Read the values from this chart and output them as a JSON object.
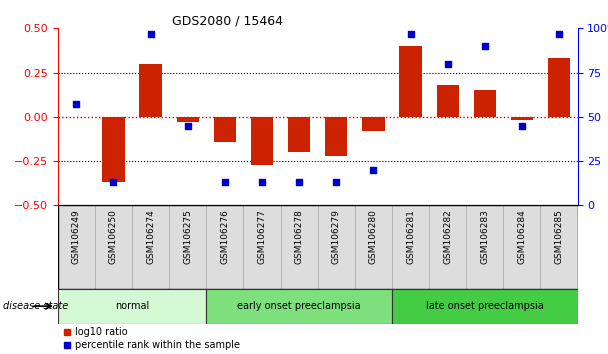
{
  "title": "GDS2080 / 15464",
  "samples": [
    "GSM106249",
    "GSM106250",
    "GSM106274",
    "GSM106275",
    "GSM106276",
    "GSM106277",
    "GSM106278",
    "GSM106279",
    "GSM106280",
    "GSM106281",
    "GSM106282",
    "GSM106283",
    "GSM106284",
    "GSM106285"
  ],
  "log10_ratio": [
    0.0,
    -0.37,
    0.3,
    -0.03,
    -0.14,
    -0.27,
    -0.2,
    -0.22,
    -0.08,
    0.4,
    0.18,
    0.15,
    -0.02,
    0.33
  ],
  "percentile_rank": [
    57,
    13,
    97,
    45,
    13,
    13,
    13,
    13,
    20,
    97,
    80,
    90,
    45,
    97
  ],
  "groups": [
    {
      "label": "normal",
      "start": 0,
      "end": 3,
      "color": "#d4f7d4"
    },
    {
      "label": "early onset preeclampsia",
      "start": 4,
      "end": 8,
      "color": "#7de07d"
    },
    {
      "label": "late onset preeclampsia",
      "start": 9,
      "end": 13,
      "color": "#44cc44"
    }
  ],
  "bar_color": "#cc2200",
  "dot_color": "#0000cc",
  "zero_line_color": "#cc0000",
  "grid_color": "#000000",
  "ylim_left": [
    -0.5,
    0.5
  ],
  "ylim_right": [
    0,
    100
  ],
  "yticks_left": [
    -0.5,
    -0.25,
    0,
    0.25,
    0.5
  ],
  "yticks_right": [
    0,
    25,
    50,
    75,
    100
  ],
  "legend_items": [
    "log10 ratio",
    "percentile rank within the sample"
  ],
  "disease_state_label": "disease state",
  "background_color": "#ffffff"
}
